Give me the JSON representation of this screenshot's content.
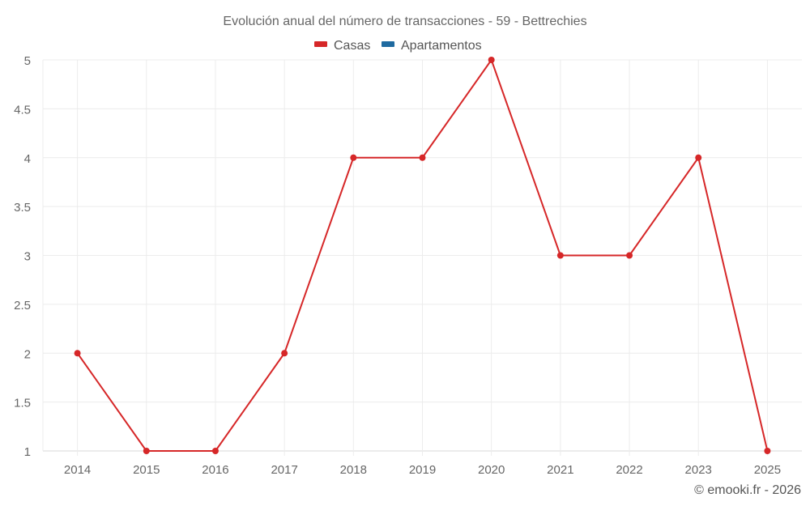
{
  "chart_data": {
    "type": "line",
    "title": "Evolución anual del número de transacciones - 59 - Bettrechies",
    "xlabel": "",
    "ylabel": "",
    "categories": [
      "2014",
      "2015",
      "2016",
      "2017",
      "2018",
      "2019",
      "2020",
      "2021",
      "2022",
      "2023",
      "2025"
    ],
    "series": [
      {
        "name": "Casas",
        "color": "#d62728",
        "values": [
          2,
          1,
          1,
          2,
          4,
          4,
          5,
          3,
          3,
          4,
          1
        ]
      },
      {
        "name": "Apartamentos",
        "color": "#1f6aa0",
        "values": []
      }
    ],
    "ylim": [
      1,
      5
    ],
    "yticks": [
      "1",
      "1.5",
      "2",
      "2.5",
      "3",
      "3.5",
      "4",
      "4.5",
      "5"
    ],
    "grid": true,
    "legend_position": "top"
  },
  "credit": "© emooki.fr - 2026"
}
